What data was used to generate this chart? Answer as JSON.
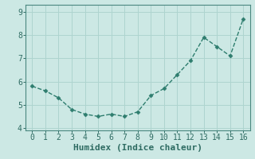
{
  "x": [
    0,
    1,
    2,
    3,
    4,
    5,
    6,
    7,
    8,
    9,
    10,
    11,
    12,
    13,
    14,
    15,
    16
  ],
  "y": [
    5.8,
    5.6,
    5.3,
    4.8,
    4.6,
    4.5,
    4.6,
    4.5,
    4.7,
    5.4,
    5.7,
    6.3,
    6.9,
    7.9,
    7.5,
    7.1,
    8.7
  ],
  "xlabel": "Humidex (Indice chaleur)",
  "line_color": "#2e7d6e",
  "bg_color": "#cce8e4",
  "grid_color": "#aed4cf",
  "axis_color": "#2e6b62",
  "spine_color": "#4a8880",
  "ylim": [
    3.9,
    9.3
  ],
  "xlim": [
    -0.5,
    16.5
  ],
  "yticks": [
    4,
    5,
    6,
    7,
    8,
    9
  ],
  "xticks": [
    0,
    1,
    2,
    3,
    4,
    5,
    6,
    7,
    8,
    9,
    10,
    11,
    12,
    13,
    14,
    15,
    16
  ],
  "xlabel_fontsize": 8,
  "tick_fontsize": 7,
  "linewidth": 1.0,
  "markersize": 2.5
}
